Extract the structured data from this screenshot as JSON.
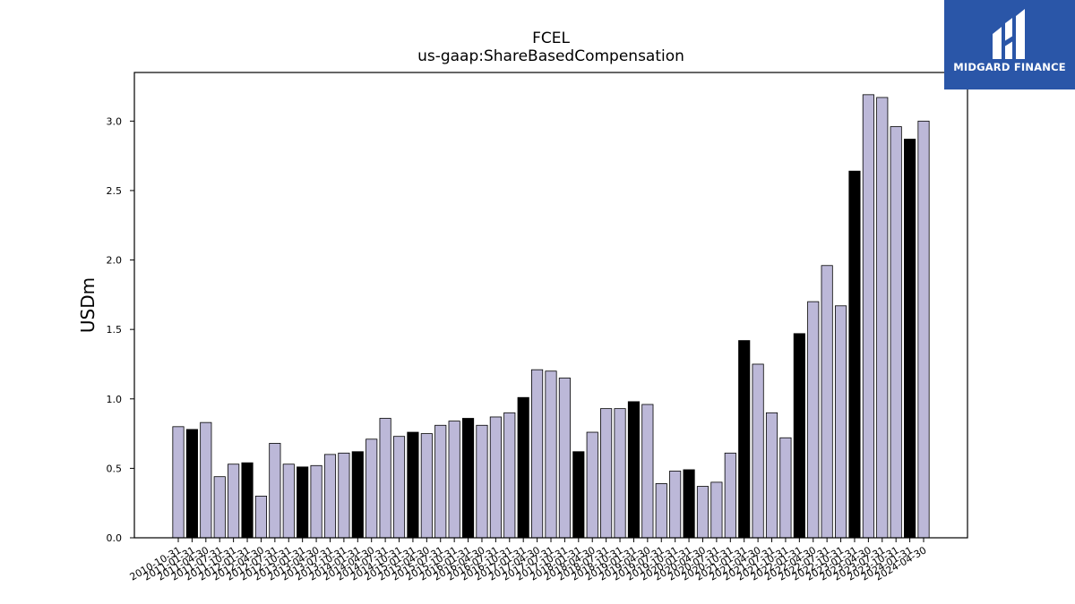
{
  "brand": {
    "name": "MIDGARD FINANCE",
    "background": "#2a56a8"
  },
  "chart_data": {
    "type": "bar",
    "title": "FCEL",
    "subtitle": "us-gaap:ShareBasedCompensation",
    "xlabel": "",
    "ylabel": "USDm",
    "ylim": [
      0,
      3.35
    ],
    "yticks": [
      "0.0",
      "0.5",
      "1.0",
      "1.5",
      "2.0",
      "2.5",
      "3.0"
    ],
    "grid": false,
    "colors": {
      "default": "#bcb8d8",
      "highlight": "#000000",
      "edge": "#000000"
    },
    "categories": [
      "2010-10-31",
      "2011-01-31",
      "2011-04-30",
      "2011-07-31",
      "2011-10-31",
      "2012-01-31",
      "2012-04-30",
      "2012-07-31",
      "2012-10-31",
      "2013-01-31",
      "2013-04-30",
      "2013-07-31",
      "2013-10-31",
      "2014-01-31",
      "2014-04-30",
      "2014-07-31",
      "2014-10-31",
      "2015-01-31",
      "2015-04-30",
      "2015-07-31",
      "2015-10-31",
      "2016-01-31",
      "2016-04-30",
      "2016-07-31",
      "2016-10-31",
      "2017-01-31",
      "2017-04-30",
      "2017-07-31",
      "2017-10-31",
      "2018-01-31",
      "2018-04-30",
      "2018-07-31",
      "2018-10-31",
      "2019-01-31",
      "2019-04-30",
      "2019-07-31",
      "2019-10-31",
      "2020-01-31",
      "2020-04-30",
      "2020-07-31",
      "2020-10-31",
      "2021-01-31",
      "2021-04-30",
      "2021-07-31",
      "2021-10-31",
      "2022-01-31",
      "2022-04-30",
      "2022-07-31",
      "2022-10-31",
      "2023-01-31",
      "2023-04-30",
      "2023-07-31",
      "2023-10-31",
      "2024-01-31",
      "2024-04-30"
    ],
    "values": [
      0.8,
      0.78,
      0.83,
      0.44,
      0.53,
      0.54,
      0.3,
      0.68,
      0.53,
      0.51,
      0.52,
      0.6,
      0.61,
      0.62,
      0.71,
      0.86,
      0.73,
      0.76,
      0.75,
      0.81,
      0.84,
      0.86,
      0.81,
      0.87,
      0.9,
      1.01,
      1.21,
      1.2,
      1.15,
      0.62,
      0.76,
      0.93,
      0.93,
      0.98,
      0.96,
      0.39,
      0.48,
      0.49,
      0.37,
      0.4,
      0.61,
      1.42,
      1.25,
      0.9,
      0.72,
      1.47,
      1.7,
      1.96,
      1.67,
      2.64,
      3.19,
      3.17,
      2.96,
      2.87,
      3.0
    ],
    "highlighted": [
      false,
      true,
      false,
      false,
      false,
      true,
      false,
      false,
      false,
      true,
      false,
      false,
      false,
      true,
      false,
      false,
      false,
      true,
      false,
      false,
      false,
      true,
      false,
      false,
      false,
      true,
      false,
      false,
      false,
      true,
      false,
      false,
      false,
      true,
      false,
      false,
      false,
      true,
      false,
      false,
      false,
      true,
      false,
      false,
      false,
      true,
      false,
      false,
      false,
      true,
      false,
      false,
      false,
      true,
      false
    ]
  }
}
